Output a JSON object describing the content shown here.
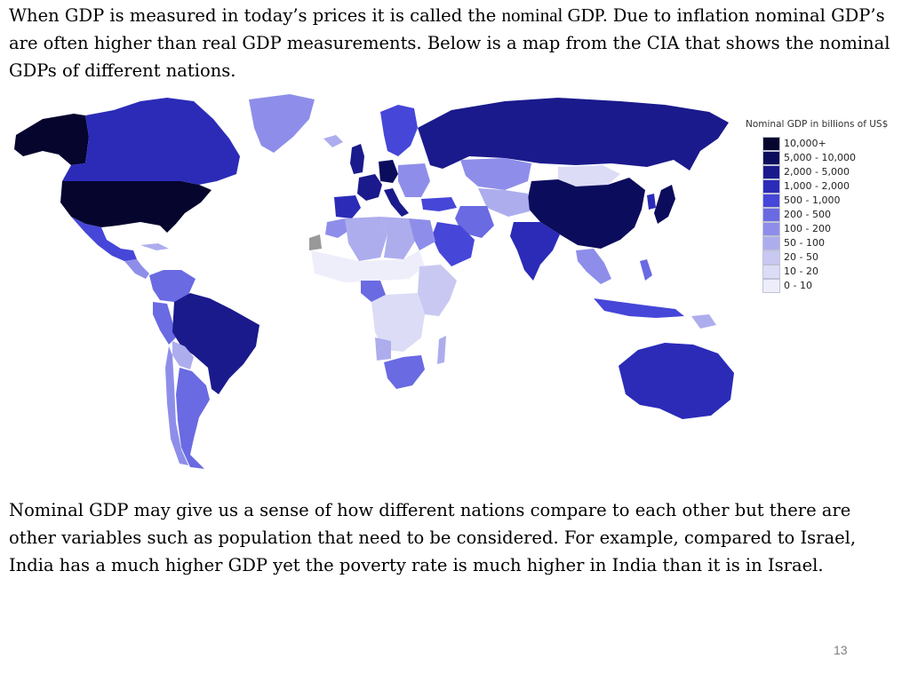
{
  "intro": {
    "before": "When GDP is measured in today’s prices it is called the ",
    "term": "nominal GDP.",
    "after": "  Due to inflation nominal GDP’s are often higher than real GDP measurements.  Below is a map from the CIA that shows the nominal GDPs of different nations."
  },
  "legend": {
    "title": "Nominal GDP in billions of US$",
    "items": [
      {
        "label": "10,000+",
        "color": "#05052e"
      },
      {
        "label": "5,000 - 10,000",
        "color": "#0c0c5c"
      },
      {
        "label": "2,000 - 5,000",
        "color": "#1a1a8c"
      },
      {
        "label": "1,000 - 2,000",
        "color": "#2b2bb8"
      },
      {
        "label": "500 - 1,000",
        "color": "#4646d8"
      },
      {
        "label": "200 - 500",
        "color": "#6a6ae2"
      },
      {
        "label": "100 - 200",
        "color": "#8e8eea"
      },
      {
        "label": "50 - 100",
        "color": "#adadee"
      },
      {
        "label": "20 - 50",
        "color": "#c8c8f2"
      },
      {
        "label": "10 - 20",
        "color": "#dcdcf6"
      },
      {
        "label": "0 - 10",
        "color": "#eeeefb"
      }
    ]
  },
  "closing": "Nominal GDP may give us a sense of how different nations compare to each other but there are other variables such as population that need to be considered.  For example, compared to Israel, India has a much higher GDP yet the poverty rate is much higher in India than it is in Israel.",
  "slide_number": "13"
}
